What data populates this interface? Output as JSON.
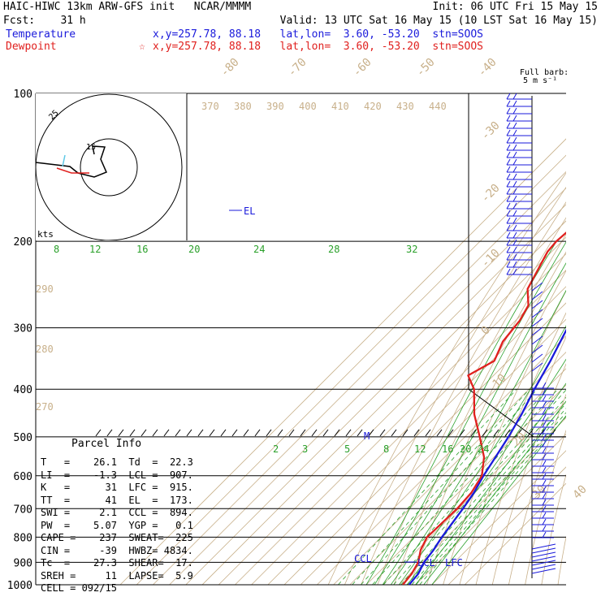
{
  "header": {
    "line1_left": "HAIC-HIWC 13km ARW-GFS init   NCAR/MMMM",
    "line1_right": "Init: 06 UTC Fri 15 May 15",
    "line2_left": "Fcst:    31 h",
    "line2_right": "Valid: 13 UTC Sat 16 May 15 (10 LST Sat 16 May 15)",
    "temp_label": "Temperature",
    "temp_info": "x,y=257.78, 88.18   lat,lon=  3.60, -53.20  stn=SOOS",
    "dew_label": "Dewpoint",
    "dew_star": "☆",
    "dew_info": "x,y=257.78, 88.18   lat,lon=  3.60, -53.20  stn=SOOS",
    "barb_title": "Full barb:",
    "barb_unit": "5 m s⁻¹"
  },
  "colors": {
    "temperature": "#1a1adb",
    "dewpoint": "#e0201e",
    "dry_adiabat": "#c8b08a",
    "mixing": "#2aa02a",
    "isobar": "#000000"
  },
  "chart_data": {
    "type": "line",
    "title": "",
    "ylabel": "",
    "y_scale": "log-pressure",
    "ylim": [
      1000,
      100
    ],
    "pressure_labels": [
      100,
      200,
      300,
      400,
      500,
      600,
      700,
      800,
      900,
      1000
    ],
    "isotherm_labels": [
      "-80",
      "-70",
      "-60",
      "-50",
      "-40",
      "-30",
      "-20",
      "-10",
      "0",
      "10",
      "20",
      "30",
      "40"
    ],
    "dry_adiabat_labels": [
      "370",
      "380",
      "390",
      "400",
      "410",
      "420",
      "430",
      "440",
      "290",
      "280",
      "270"
    ],
    "mixing_ratio_labels_upper": [
      "8",
      "12",
      "16",
      "20",
      "24",
      "28",
      "32"
    ],
    "mixing_ratio_labels_lower": [
      "2",
      "3",
      "5",
      "8",
      "12",
      "16",
      "20",
      "24"
    ],
    "series": [
      {
        "name": "Temperature",
        "color": "#1a1adb",
        "points": [
          [
            100,
            -84.0
          ],
          [
            110,
            -79.5
          ],
          [
            125,
            -75.3
          ],
          [
            150,
            -68.5
          ],
          [
            170,
            -63.0
          ],
          [
            180,
            -60.0
          ],
          [
            200,
            -55.0
          ],
          [
            250,
            -43.3
          ],
          [
            300,
            -34.0
          ],
          [
            350,
            -24.3
          ],
          [
            400,
            -16.7
          ],
          [
            450,
            -9.2
          ],
          [
            500,
            -3.5
          ],
          [
            550,
            1.0
          ],
          [
            600,
            5.0
          ],
          [
            650,
            9.5
          ],
          [
            700,
            12.5
          ],
          [
            800,
            17.0
          ],
          [
            850,
            19.8
          ],
          [
            900,
            21.5
          ],
          [
            950,
            25.0
          ],
          [
            1000,
            26.1
          ]
        ]
      },
      {
        "name": "Dewpoint",
        "color": "#e0201e",
        "points": [
          [
            100,
            -70.0
          ],
          [
            140,
            -79.0
          ],
          [
            180,
            -91.5
          ],
          [
            200,
            -93.5
          ],
          [
            210,
            -92.5
          ],
          [
            250,
            -82.0
          ],
          [
            270,
            -71.5
          ],
          [
            290,
            -67.5
          ],
          [
            320,
            -65.0
          ],
          [
            350,
            -58.5
          ],
          [
            375,
            -65.5
          ],
          [
            400,
            -53.5
          ],
          [
            450,
            -38.0
          ],
          [
            500,
            -21.0
          ],
          [
            550,
            -6.0
          ],
          [
            600,
            4.0
          ],
          [
            650,
            8.0
          ],
          [
            700,
            9.0
          ],
          [
            800,
            8.0
          ],
          [
            850,
            12.0
          ],
          [
            900,
            18.0
          ],
          [
            950,
            21.0
          ],
          [
            1000,
            22.3
          ]
        ]
      }
    ],
    "markers": [
      {
        "label": "EL",
        "pressure": 173
      },
      {
        "label": "M",
        "pressure": 500
      },
      {
        "label": "CCL",
        "pressure": 894
      },
      {
        "label": "LCL",
        "pressure": 907
      },
      {
        "label": "LFC",
        "pressure": 915
      }
    ],
    "hodograph": {
      "ring_labels": [
        "25",
        "15"
      ],
      "unit_label": "kts"
    },
    "wind_barbs_right": true
  },
  "parcel_info": {
    "title": "Parcel Info",
    "rows": [
      "T   =    26.1  Td  =  22.3",
      "LI  =    -1.3  LCL =  907.",
      "K   =      31  LFC =  915.",
      "TT  =      41  EL  =  173.",
      "SWI =     2.1  CCL =  894.",
      "PW  =    5.07  YGP =   0.1",
      "CAPE =    237  SWEAT=  225",
      "CIN =     -39  HWBZ= 4834.",
      "Tc  =    27.3  SHEAR=  17.",
      "SREH =     11  LAPSE=  5.9",
      "CELL = 092/15"
    ]
  }
}
